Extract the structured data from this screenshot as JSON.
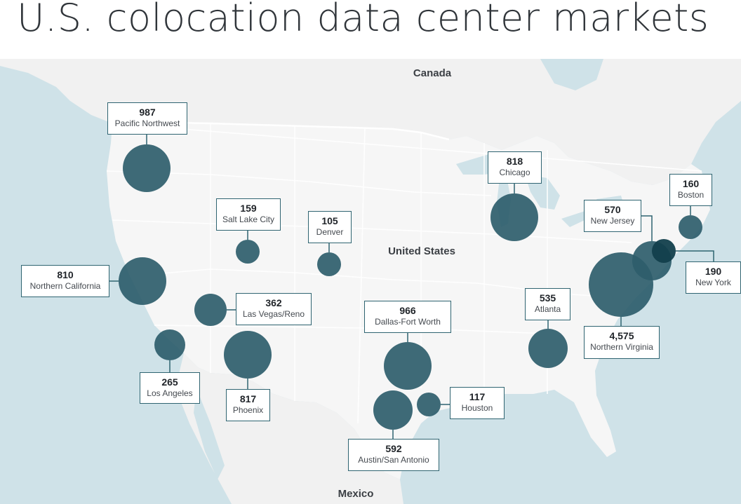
{
  "title": "U.S. colocation data center markets",
  "map": {
    "countries": [
      "Canada",
      "United States",
      "Mexico"
    ],
    "colors": {
      "water": "#cfe2e8",
      "land": "#f2f2f2",
      "us_land": "#f6f6f6",
      "border": "#ffffff",
      "bubble": "#2e5d6b",
      "bubble_dark": "#123f4c",
      "label_border": "#2f6471"
    },
    "markets": [
      {
        "name": "Pacific Northwest",
        "value": "987"
      },
      {
        "name": "Northern California",
        "value": "810"
      },
      {
        "name": "Salt Lake City",
        "value": "159"
      },
      {
        "name": "Denver",
        "value": "105"
      },
      {
        "name": "Las Vegas/Reno",
        "value": "362"
      },
      {
        "name": "Los Angeles",
        "value": "265"
      },
      {
        "name": "Phoenix",
        "value": "817"
      },
      {
        "name": "Dallas-Fort Worth",
        "value": "966"
      },
      {
        "name": "Houston",
        "value": "117"
      },
      {
        "name": "Austin/San Antonio",
        "value": "592"
      },
      {
        "name": "Chicago",
        "value": "818"
      },
      {
        "name": "Atlanta",
        "value": "535"
      },
      {
        "name": "Northern Virginia",
        "value": "4,575"
      },
      {
        "name": "New Jersey",
        "value": "570"
      },
      {
        "name": "New York",
        "value": "190"
      },
      {
        "name": "Boston",
        "value": "160"
      }
    ]
  }
}
